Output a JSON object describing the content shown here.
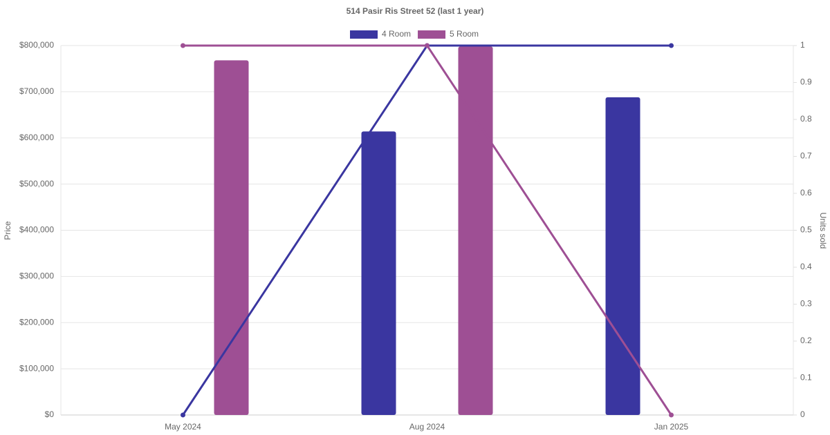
{
  "chart_data": {
    "type": "bar-line",
    "title": "514 Pasir Ris Street 52 (last 1 year)",
    "y_label": "Price",
    "y2_label": "Units sold",
    "categories": [
      "May 2024",
      "Aug 2024",
      "Jan 2025"
    ],
    "series": [
      {
        "name": "4 Room",
        "color": "#3a36a0",
        "values": [
          null,
          614000,
          688000
        ],
        "units_sold": [
          0,
          1,
          1
        ]
      },
      {
        "name": "5 Room",
        "color": "#9e4f94",
        "values": [
          768000,
          798000,
          null
        ],
        "units_sold": [
          1,
          1,
          0
        ]
      }
    ],
    "ylim": [
      0,
      800000
    ],
    "yticks": [
      {
        "value": 0,
        "label": "$0"
      },
      {
        "value": 100000,
        "label": "$100,000"
      },
      {
        "value": 200000,
        "label": "$200,000"
      },
      {
        "value": 300000,
        "label": "$300,000"
      },
      {
        "value": 400000,
        "label": "$400,000"
      },
      {
        "value": 500000,
        "label": "$500,000"
      },
      {
        "value": 600000,
        "label": "$600,000"
      },
      {
        "value": 700000,
        "label": "$700,000"
      },
      {
        "value": 800000,
        "label": "$800,000"
      }
    ],
    "y2lim": [
      0,
      1
    ],
    "y2ticks": [
      0,
      0.1,
      0.2,
      0.3,
      0.4,
      0.5,
      0.6,
      0.7,
      0.8,
      0.9,
      1
    ],
    "grid": true,
    "legend": "top"
  }
}
